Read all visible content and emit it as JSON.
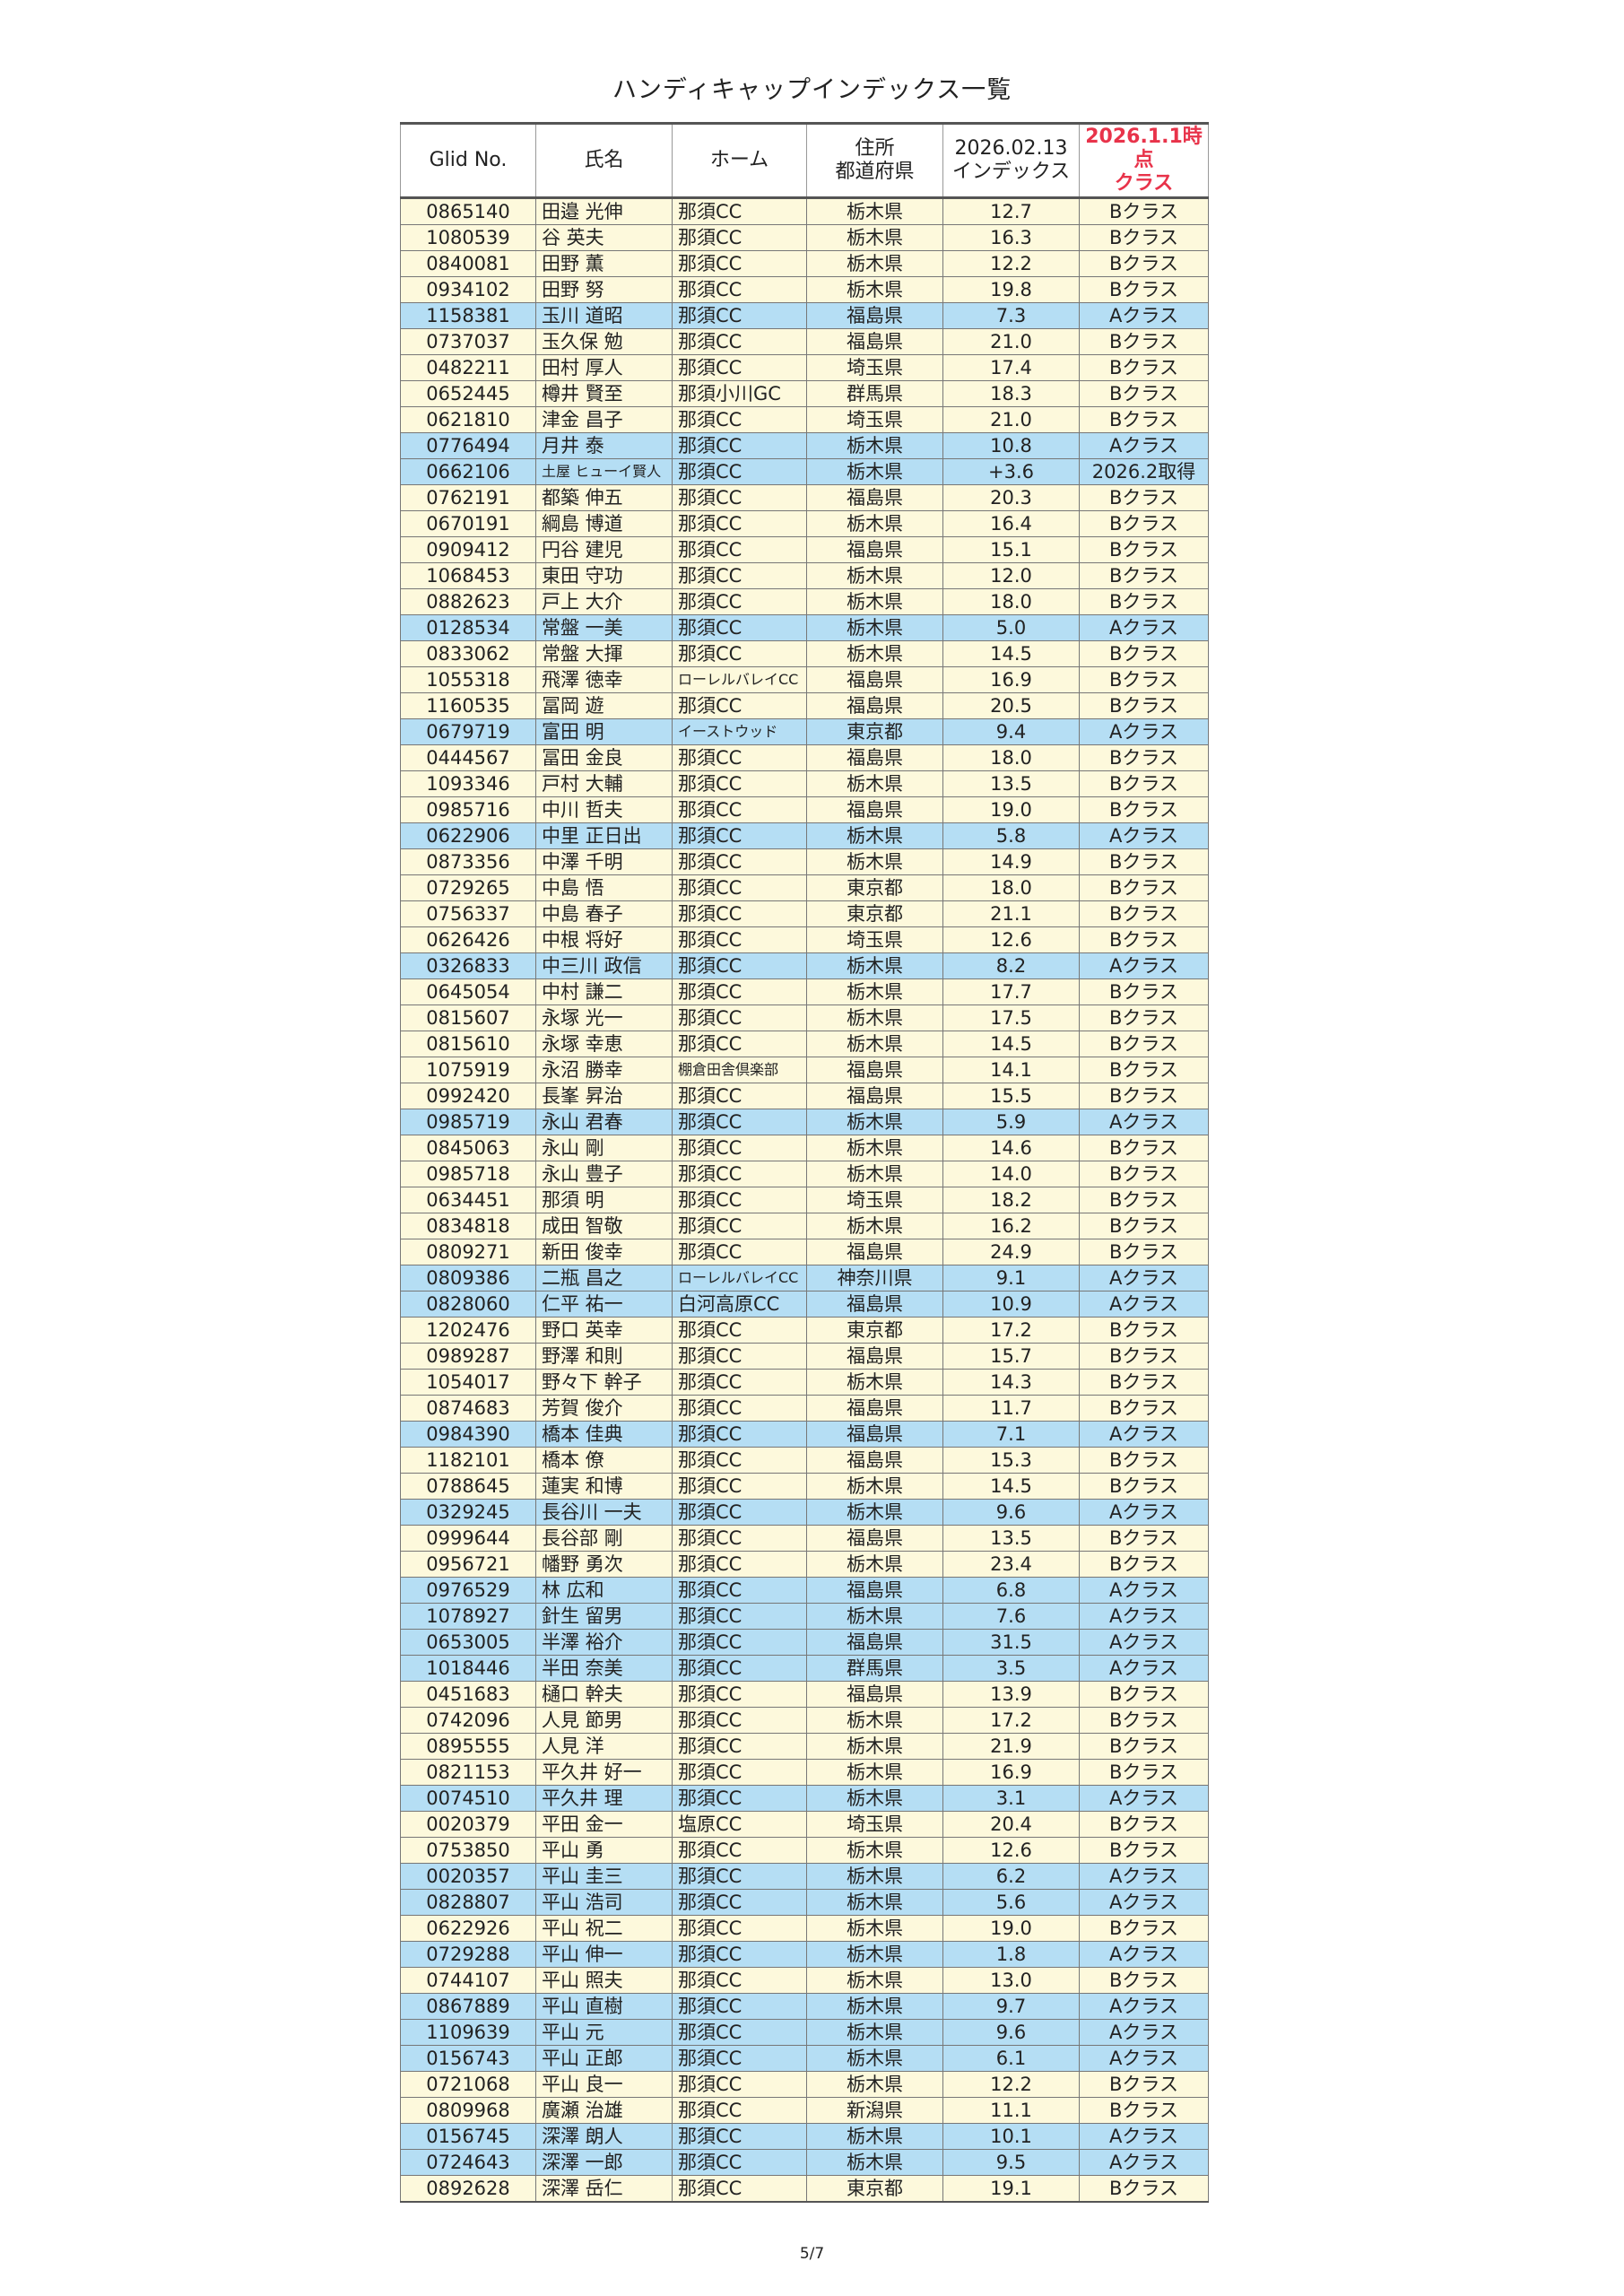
{
  "header": {
    "title": "ハンディキャップインデックス一覧"
  },
  "table": {
    "columns": [
      "Glid No.",
      "氏名",
      "ホーム",
      "住所\n都道府県",
      "2026.02.13\nインデックス",
      "2026.1.1時点\nクラス"
    ],
    "highlight_column_color": "#e8334a",
    "rows": [
      [
        "0865140",
        "田邉 光伸",
        "那須CC",
        "栃木県",
        "12.7",
        "Bクラス"
      ],
      [
        "1080539",
        "谷 英夫",
        "那須CC",
        "栃木県",
        "16.3",
        "Bクラス"
      ],
      [
        "0840081",
        "田野 薫",
        "那須CC",
        "栃木県",
        "12.2",
        "Bクラス"
      ],
      [
        "0934102",
        "田野 努",
        "那須CC",
        "栃木県",
        "19.8",
        "Bクラス"
      ],
      [
        "1158381",
        "玉川 道昭",
        "那須CC",
        "福島県",
        "7.3",
        "Aクラス"
      ],
      [
        "0737037",
        "玉久保 勉",
        "那須CC",
        "福島県",
        "21.0",
        "Bクラス"
      ],
      [
        "0482211",
        "田村 厚人",
        "那須CC",
        "埼玉県",
        "17.4",
        "Bクラス"
      ],
      [
        "0652445",
        "樽井 賢至",
        "那須小川GC",
        "群馬県",
        "18.3",
        "Bクラス"
      ],
      [
        "0621810",
        "津金 昌子",
        "那須CC",
        "埼玉県",
        "21.0",
        "Bクラス"
      ],
      [
        "0776494",
        "月井 泰",
        "那須CC",
        "栃木県",
        "10.8",
        "Aクラス"
      ],
      [
        "0662106",
        "土屋 ヒューイ賢人",
        "那須CC",
        "栃木県",
        "+3.6",
        "2026.2取得"
      ],
      [
        "0762191",
        "都築 伸五",
        "那須CC",
        "福島県",
        "20.3",
        "Bクラス"
      ],
      [
        "0670191",
        "綱島 博道",
        "那須CC",
        "栃木県",
        "16.4",
        "Bクラス"
      ],
      [
        "0909412",
        "円谷 建児",
        "那須CC",
        "福島県",
        "15.1",
        "Bクラス"
      ],
      [
        "1068453",
        "東田 守功",
        "那須CC",
        "栃木県",
        "12.0",
        "Bクラス"
      ],
      [
        "0882623",
        "戸上 大介",
        "那須CC",
        "栃木県",
        "18.0",
        "Bクラス"
      ],
      [
        "0128534",
        "常盤 一美",
        "那須CC",
        "栃木県",
        "5.0",
        "Aクラス"
      ],
      [
        "0833062",
        "常盤 大揮",
        "那須CC",
        "栃木県",
        "14.5",
        "Bクラス"
      ],
      [
        "1055318",
        "飛澤 徳幸",
        "ローレルバレイCC",
        "福島県",
        "16.9",
        "Bクラス"
      ],
      [
        "1160535",
        "冨岡 遊",
        "那須CC",
        "福島県",
        "20.5",
        "Bクラス"
      ],
      [
        "0679719",
        "富田 明",
        "イーストウッド",
        "東京都",
        "9.4",
        "Aクラス"
      ],
      [
        "0444567",
        "冨田 金良",
        "那須CC",
        "福島県",
        "18.0",
        "Bクラス"
      ],
      [
        "1093346",
        "戸村 大輔",
        "那須CC",
        "栃木県",
        "13.5",
        "Bクラス"
      ],
      [
        "0985716",
        "中川 哲夫",
        "那須CC",
        "福島県",
        "19.0",
        "Bクラス"
      ],
      [
        "0622906",
        "中里 正日出",
        "那須CC",
        "栃木県",
        "5.8",
        "Aクラス"
      ],
      [
        "0873356",
        "中澤 千明",
        "那須CC",
        "栃木県",
        "14.9",
        "Bクラス"
      ],
      [
        "0729265",
        "中島 悟",
        "那須CC",
        "東京都",
        "18.0",
        "Bクラス"
      ],
      [
        "0756337",
        "中島 春子",
        "那須CC",
        "東京都",
        "21.1",
        "Bクラス"
      ],
      [
        "0626426",
        "中根 将好",
        "那須CC",
        "埼玉県",
        "12.6",
        "Bクラス"
      ],
      [
        "0326833",
        "中三川 政信",
        "那須CC",
        "栃木県",
        "8.2",
        "Aクラス"
      ],
      [
        "0645054",
        "中村 謙二",
        "那須CC",
        "栃木県",
        "17.7",
        "Bクラス"
      ],
      [
        "0815607",
        "永塚 光一",
        "那須CC",
        "栃木県",
        "17.5",
        "Bクラス"
      ],
      [
        "0815610",
        "永塚 幸恵",
        "那須CC",
        "栃木県",
        "14.5",
        "Bクラス"
      ],
      [
        "1075919",
        "永沼 勝幸",
        "棚倉田舎倶楽部",
        "福島県",
        "14.1",
        "Bクラス"
      ],
      [
        "0992420",
        "長峯 昇治",
        "那須CC",
        "福島県",
        "15.5",
        "Bクラス"
      ],
      [
        "0985719",
        "永山 君春",
        "那須CC",
        "栃木県",
        "5.9",
        "Aクラス"
      ],
      [
        "0845063",
        "永山 剛",
        "那須CC",
        "栃木県",
        "14.6",
        "Bクラス"
      ],
      [
        "0985718",
        "永山 豊子",
        "那須CC",
        "栃木県",
        "14.0",
        "Bクラス"
      ],
      [
        "0634451",
        "那須 明",
        "那須CC",
        "埼玉県",
        "18.2",
        "Bクラス"
      ],
      [
        "0834818",
        "成田 智敬",
        "那須CC",
        "栃木県",
        "16.2",
        "Bクラス"
      ],
      [
        "0809271",
        "新田 俊幸",
        "那須CC",
        "福島県",
        "24.9",
        "Bクラス"
      ],
      [
        "0809386",
        "二瓶 昌之",
        "ローレルバレイCC",
        "神奈川県",
        "9.1",
        "Aクラス"
      ],
      [
        "0828060",
        "仁平 祐一",
        "白河高原CC",
        "福島県",
        "10.9",
        "Aクラス"
      ],
      [
        "1202476",
        "野口 英幸",
        "那須CC",
        "東京都",
        "17.2",
        "Bクラス"
      ],
      [
        "0989287",
        "野澤 和則",
        "那須CC",
        "福島県",
        "15.7",
        "Bクラス"
      ],
      [
        "1054017",
        "野々下 幹子",
        "那須CC",
        "栃木県",
        "14.3",
        "Bクラス"
      ],
      [
        "0874683",
        "芳賀 俊介",
        "那須CC",
        "福島県",
        "11.7",
        "Bクラス"
      ],
      [
        "0984390",
        "橋本 佳典",
        "那須CC",
        "福島県",
        "7.1",
        "Aクラス"
      ],
      [
        "1182101",
        "橋本 僚",
        "那須CC",
        "福島県",
        "15.3",
        "Bクラス"
      ],
      [
        "0788645",
        "蓮実 和博",
        "那須CC",
        "栃木県",
        "14.5",
        "Bクラス"
      ],
      [
        "0329245",
        "長谷川 一夫",
        "那須CC",
        "栃木県",
        "9.6",
        "Aクラス"
      ],
      [
        "0999644",
        "長谷部 剛",
        "那須CC",
        "福島県",
        "13.5",
        "Bクラス"
      ],
      [
        "0956721",
        "幡野 勇次",
        "那須CC",
        "栃木県",
        "23.4",
        "Bクラス"
      ],
      [
        "0976529",
        "林 広和",
        "那須CC",
        "福島県",
        "6.8",
        "Aクラス"
      ],
      [
        "1078927",
        "針生 留男",
        "那須CC",
        "栃木県",
        "7.6",
        "Aクラス"
      ],
      [
        "0653005",
        "半澤 裕介",
        "那須CC",
        "福島県",
        "31.5",
        "Aクラス"
      ],
      [
        "1018446",
        "半田 奈美",
        "那須CC",
        "群馬県",
        "3.5",
        "Aクラス"
      ],
      [
        "0451683",
        "樋口 幹夫",
        "那須CC",
        "福島県",
        "13.9",
        "Bクラス"
      ],
      [
        "0742096",
        "人見 節男",
        "那須CC",
        "栃木県",
        "17.2",
        "Bクラス"
      ],
      [
        "0895555",
        "人見 洋",
        "那須CC",
        "栃木県",
        "21.9",
        "Bクラス"
      ],
      [
        "0821153",
        "平久井 好一",
        "那須CC",
        "栃木県",
        "16.9",
        "Bクラス"
      ],
      [
        "0074510",
        "平久井 理",
        "那須CC",
        "栃木県",
        "3.1",
        "Aクラス"
      ],
      [
        "0020379",
        "平田 金一",
        "塩原CC",
        "埼玉県",
        "20.4",
        "Bクラス"
      ],
      [
        "0753850",
        "平山 勇",
        "那須CC",
        "栃木県",
        "12.6",
        "Bクラス"
      ],
      [
        "0020357",
        "平山 圭三",
        "那須CC",
        "栃木県",
        "6.2",
        "Aクラス"
      ],
      [
        "0828807",
        "平山 浩司",
        "那須CC",
        "栃木県",
        "5.6",
        "Aクラス"
      ],
      [
        "0622926",
        "平山 祝二",
        "那須CC",
        "栃木県",
        "19.0",
        "Bクラス"
      ],
      [
        "0729288",
        "平山 伸一",
        "那須CC",
        "栃木県",
        "1.8",
        "Aクラス"
      ],
      [
        "0744107",
        "平山 照夫",
        "那須CC",
        "栃木県",
        "13.0",
        "Bクラス"
      ],
      [
        "0867889",
        "平山 直樹",
        "那須CC",
        "栃木県",
        "9.7",
        "Aクラス"
      ],
      [
        "1109639",
        "平山 元",
        "那須CC",
        "栃木県",
        "9.6",
        "Aクラス"
      ],
      [
        "0156743",
        "平山 正郎",
        "那須CC",
        "栃木県",
        "6.1",
        "Aクラス"
      ],
      [
        "0721068",
        "平山 良一",
        "那須CC",
        "栃木県",
        "12.2",
        "Bクラス"
      ],
      [
        "0809968",
        "廣瀬 治雄",
        "那須CC",
        "新潟県",
        "11.1",
        "Bクラス"
      ],
      [
        "0156745",
        "深澤 朗人",
        "那須CC",
        "栃木県",
        "10.1",
        "Aクラス"
      ],
      [
        "0724643",
        "深澤 一郎",
        "那須CC",
        "栃木県",
        "9.5",
        "Aクラス"
      ],
      [
        "0892628",
        "深澤 岳仁",
        "那須CC",
        "東京都",
        "19.1",
        "Bクラス"
      ]
    ],
    "row_colors": [
      "#fdf9dc",
      "#fdf9dc",
      "#fdf9dc",
      "#fdf9dc",
      "#b5def4",
      "#fdf9dc",
      "#fdf9dc",
      "#fdf9dc",
      "#fdf9dc",
      "#b5def4",
      "#b5def4",
      "#fdf9dc",
      "#fdf9dc",
      "#fdf9dc",
      "#fdf9dc",
      "#fdf9dc",
      "#b5def4",
      "#fdf9dc",
      "#fdf9dc",
      "#fdf9dc",
      "#b5def4",
      "#fdf9dc",
      "#fdf9dc",
      "#fdf9dc",
      "#b5def4",
      "#fdf9dc",
      "#fdf9dc",
      "#fdf9dc",
      "#fdf9dc",
      "#b5def4",
      "#fdf9dc",
      "#fdf9dc",
      "#fdf9dc",
      "#fdf9dc",
      "#fdf9dc",
      "#b5def4",
      "#fdf9dc",
      "#fdf9dc",
      "#fdf9dc",
      "#fdf9dc",
      "#fdf9dc",
      "#b5def4",
      "#b5def4",
      "#fdf9dc",
      "#fdf9dc",
      "#fdf9dc",
      "#fdf9dc",
      "#b5def4",
      "#fdf9dc",
      "#fdf9dc",
      "#b5def4",
      "#fdf9dc",
      "#fdf9dc",
      "#b5def4",
      "#b5def4",
      "#b5def4",
      "#b5def4",
      "#fdf9dc",
      "#fdf9dc",
      "#fdf9dc",
      "#fdf9dc",
      "#b5def4",
      "#fdf9dc",
      "#fdf9dc",
      "#b5def4",
      "#b5def4",
      "#fdf9dc",
      "#b5def4",
      "#fdf9dc",
      "#b5def4",
      "#b5def4",
      "#b5def4",
      "#fdf9dc",
      "#fdf9dc",
      "#b5def4",
      "#b5def4",
      "#fdf9dc"
    ]
  },
  "footer": {
    "page": "5/7"
  }
}
